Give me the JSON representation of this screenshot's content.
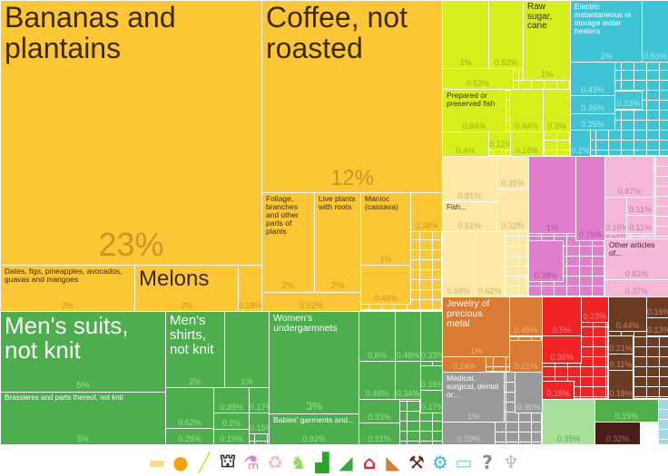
{
  "chart_data": {
    "type": "treemap",
    "value_unit": "%",
    "groups": [
      {
        "id": "food",
        "color": "#fcc634",
        "value_color": "#c9962a",
        "label_color": "#3a2a08"
      },
      {
        "id": "veg",
        "color": "#d6ee1c",
        "value_color": "#9fb216",
        "label_color": "#2b3204"
      },
      {
        "id": "mach",
        "color": "#3fc4d6",
        "value_color": "#a6e6ee",
        "label_color": "#ffffff"
      },
      {
        "id": "animal",
        "color": "#fde8a6",
        "value_color": "#c7b27a",
        "label_color": "#3a3220"
      },
      {
        "id": "chem",
        "color": "#e07dcd",
        "value_color": "#b0509e",
        "label_color": "#3a1a33"
      },
      {
        "id": "plastic",
        "color": "#f6b8d9",
        "value_color": "#c9789f",
        "label_color": "#3a1f2e"
      },
      {
        "id": "metal",
        "color": "#d97b33",
        "value_color": "#f3b07e",
        "label_color": "#ffffff"
      },
      {
        "id": "instr",
        "color": "#9a9a9a",
        "value_color": "#cfcfcf",
        "label_color": "#ffffff"
      },
      {
        "id": "elec",
        "color": "#ef2323",
        "value_color": "#f98a8a",
        "label_color": "#ffffff"
      },
      {
        "id": "stone",
        "color": "#6b3b22",
        "value_color": "#b58a72",
        "label_color": "#ffffff"
      },
      {
        "id": "misc",
        "color": "#a7e29d",
        "value_color": "#5fa456",
        "label_color": "#1d3a18"
      },
      {
        "id": "gr2",
        "color": "#4fb04a",
        "value_color": "#9fdc95",
        "label_color": "#ffffff"
      },
      {
        "id": "dark",
        "color": "#4b1d19",
        "value_color": "#9c6a64",
        "label_color": "#ffffff"
      },
      {
        "id": "lblue",
        "color": "#a5d8e6",
        "value_color": "#6aa0b0",
        "label_color": "#ffffff"
      },
      {
        "id": "textile",
        "color": "#4cae4c",
        "value_color": "#9fdc95",
        "label_color": "#ffffff"
      }
    ],
    "tiles": [
      {
        "group": "food",
        "label": "Bananas and plantains",
        "value": "23%"
      },
      {
        "group": "food",
        "label": "Coffee, not roasted",
        "value": "12%"
      },
      {
        "group": "food",
        "label": "Dates, figs, pineapples, avocados, guavas and mangoes",
        "value": "2%"
      },
      {
        "group": "food",
        "label": "Melons",
        "value": "2%"
      },
      {
        "group": "food",
        "label": "",
        "value": "0.18%"
      },
      {
        "group": "food",
        "label": "Foliage, branches and other parts of plants",
        "value": "2%"
      },
      {
        "group": "food",
        "label": "Live plants with roots",
        "value": "2%"
      },
      {
        "group": "food",
        "label": "Manioc (cassava)",
        "value": "1%"
      },
      {
        "group": "food",
        "label": "",
        "value": "0.38%"
      },
      {
        "group": "food",
        "label": "",
        "value": "0.49%"
      },
      {
        "group": "food",
        "label": "",
        "value": "0.62%"
      },
      {
        "group": "veg",
        "label": "",
        "value": "1%"
      },
      {
        "group": "veg",
        "label": "",
        "value": "0.82%"
      },
      {
        "group": "veg",
        "label": "Raw sugar, cane",
        "value": "1%"
      },
      {
        "group": "veg",
        "label": "",
        "value": "0.52%"
      },
      {
        "group": "veg",
        "label": "Prepared or preserved fish",
        "value": "0.84%"
      },
      {
        "group": "veg",
        "label": "",
        "value": "0.44%"
      },
      {
        "group": "veg",
        "label": "",
        "value": "0.3%"
      },
      {
        "group": "veg",
        "label": "",
        "value": "0.4%"
      },
      {
        "group": "veg",
        "label": "",
        "value": "0.12%"
      },
      {
        "group": "veg",
        "label": "",
        "value": "0.18%"
      },
      {
        "group": "mach",
        "label": "Electric instantaneous or storage water heaters",
        "value": "2%"
      },
      {
        "group": "mach",
        "label": "",
        "value": "0.55%"
      },
      {
        "group": "mach",
        "label": "",
        "value": "0.43%"
      },
      {
        "group": "mach",
        "label": "",
        "value": "0.35%"
      },
      {
        "group": "mach",
        "label": "",
        "value": "0.25%"
      },
      {
        "group": "mach",
        "label": "",
        "value": "0.13%"
      },
      {
        "group": "mach",
        "label": "",
        "value": "0.2%"
      },
      {
        "group": "animal",
        "label": "",
        "value": "0.81%"
      },
      {
        "group": "animal",
        "label": "",
        "value": "0.35%"
      },
      {
        "group": "animal",
        "label": "Fish...",
        "value": "0.51%"
      },
      {
        "group": "animal",
        "label": "",
        "value": "0.32%"
      },
      {
        "group": "animal",
        "label": "",
        "value": "0.68%"
      },
      {
        "group": "animal",
        "label": "",
        "value": "0.62%"
      },
      {
        "group": "chem",
        "label": "",
        "value": "1%"
      },
      {
        "group": "chem",
        "label": "",
        "value": "0.79%"
      },
      {
        "group": "chem",
        "label": "",
        "value": "0.38%"
      },
      {
        "group": "plastic",
        "label": "",
        "value": "0.47%"
      },
      {
        "group": "plastic",
        "label": "",
        "value": "0.16%"
      },
      {
        "group": "plastic",
        "label": "",
        "value": "0.11%"
      },
      {
        "group": "plastic",
        "label": "",
        "value": "0.11%"
      },
      {
        "group": "plastic",
        "label": "",
        "value": "0.13%"
      },
      {
        "group": "plastic",
        "label": "Other articles of...",
        "value": "0.81%"
      },
      {
        "group": "plastic",
        "label": "",
        "value": "0.37%"
      },
      {
        "group": "metal",
        "label": "Jewelry of precious metal",
        "value": "1%"
      },
      {
        "group": "metal",
        "label": "",
        "value": "0.45%"
      },
      {
        "group": "metal",
        "label": "",
        "value": "0.24%"
      },
      {
        "group": "metal",
        "label": "",
        "value": "0.21%"
      },
      {
        "group": "instr",
        "label": "Medical, surgical, dental or...",
        "value": "1%"
      },
      {
        "group": "instr",
        "label": "",
        "value": "0.36%"
      },
      {
        "group": "instr",
        "label": "",
        "value": "0.59%"
      },
      {
        "group": "elec",
        "label": "",
        "value": "0.5%"
      },
      {
        "group": "elec",
        "label": "",
        "value": "0.23%"
      },
      {
        "group": "elec",
        "label": "",
        "value": "0.36%"
      },
      {
        "group": "elec",
        "label": "",
        "value": "0.18%"
      },
      {
        "group": "stone",
        "label": "",
        "value": "0.44%"
      },
      {
        "group": "stone",
        "label": "",
        "value": "0.16%"
      },
      {
        "group": "stone",
        "label": "",
        "value": "0.13%"
      },
      {
        "group": "stone",
        "label": "",
        "value": "0.21%"
      },
      {
        "group": "stone",
        "label": "",
        "value": "0.11%"
      },
      {
        "group": "stone",
        "label": "",
        "value": "0.18%"
      },
      {
        "group": "misc",
        "label": "",
        "value": "0.35%"
      },
      {
        "group": "gr2",
        "label": "",
        "value": "0.19%"
      },
      {
        "group": "dark",
        "label": "",
        "value": "0.32%"
      },
      {
        "group": "textile",
        "label": "Men's suits, not knit",
        "value": "5%"
      },
      {
        "group": "textile",
        "label": "Brassieres and parts thereof, not knit",
        "value": "5%"
      },
      {
        "group": "textile",
        "label": "Men's shirts, not knit",
        "value": "2%"
      },
      {
        "group": "textile",
        "label": "",
        "value": "1%"
      },
      {
        "group": "textile",
        "label": "",
        "value": "0.62%"
      },
      {
        "group": "textile",
        "label": "",
        "value": "0.28%"
      },
      {
        "group": "textile",
        "label": "",
        "value": "0.28%"
      },
      {
        "group": "textile",
        "label": "",
        "value": "0.2%"
      },
      {
        "group": "textile",
        "label": "",
        "value": "0.19%"
      },
      {
        "group": "textile",
        "label": "",
        "value": "0.17%"
      },
      {
        "group": "textile",
        "label": "",
        "value": "0.15%"
      },
      {
        "group": "textile",
        "label": "Women's undergarmnets",
        "value": "3%"
      },
      {
        "group": "textile",
        "label": "Babies' garments and...",
        "value": "0.92%"
      },
      {
        "group": "textile",
        "label": "",
        "value": "0.6%"
      },
      {
        "group": "textile",
        "label": "",
        "value": "0.46%"
      },
      {
        "group": "textile",
        "label": "",
        "value": "0.46%"
      },
      {
        "group": "textile",
        "label": "",
        "value": "0.34%"
      },
      {
        "group": "textile",
        "label": "",
        "value": "0.33%"
      },
      {
        "group": "textile",
        "label": "",
        "value": "0.31%"
      },
      {
        "group": "textile",
        "label": "",
        "value": "0.33%"
      },
      {
        "group": "textile",
        "label": "",
        "value": "0.16%"
      },
      {
        "group": "textile",
        "label": "",
        "value": "0.17%"
      }
    ]
  },
  "legend_icons": [
    {
      "name": "animal-products-icon",
      "glyph": "▬",
      "color": "#f6dc8c"
    },
    {
      "name": "vegetable-products-icon",
      "glyph": "●",
      "color": "#f5a300"
    },
    {
      "name": "foodstuffs-icon",
      "glyph": "╱",
      "color": "#c8e62a"
    },
    {
      "name": "mineral-products-icon",
      "glyph": "⛫",
      "color": "#333333"
    },
    {
      "name": "chemical-products-icon",
      "glyph": "⚗",
      "color": "#e07dcd"
    },
    {
      "name": "plastics-rubbers-icon",
      "glyph": "♻",
      "color": "#f4b6d8"
    },
    {
      "name": "animal-hides-icon",
      "glyph": "♞",
      "color": "#9ad46a"
    },
    {
      "name": "textiles-icon",
      "glyph": "▟",
      "color": "#2aa52a"
    },
    {
      "name": "footwear-icon",
      "glyph": "◢",
      "color": "#3aa83a"
    },
    {
      "name": "stone-glass-icon",
      "glyph": "⌂",
      "color": "#e8242a"
    },
    {
      "name": "metals-icon",
      "glyph": "◣",
      "color": "#d97b34"
    },
    {
      "name": "tools-icon",
      "glyph": "⚒",
      "color": "#5a2e1a"
    },
    {
      "name": "machines-icon",
      "glyph": "⚙",
      "color": "#3ab8d8"
    },
    {
      "name": "transportation-icon",
      "glyph": "▭",
      "color": "#7ac8e0"
    },
    {
      "name": "miscellaneous-icon",
      "glyph": "?",
      "color": "#888888"
    },
    {
      "name": "arts-icon",
      "glyph": "♆",
      "color": "#bbbbbb"
    }
  ]
}
